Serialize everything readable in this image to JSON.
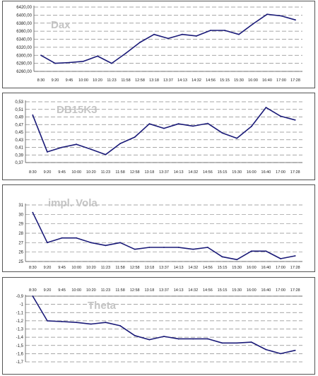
{
  "colors": {
    "line": "#1a1a78",
    "grid": "#8a8a8a",
    "title": "#c4c4c4"
  },
  "chart_data": [
    {
      "type": "line",
      "title": "Dax",
      "grid": true,
      "categories": [
        "8:30",
        "9:20",
        "9:45",
        "10:00",
        "10:20",
        "11:23",
        "11:58",
        "12:58",
        "13:18",
        "13:37",
        "14:13",
        "14:32",
        "14:56",
        "15:15",
        "15:30",
        "16:00",
        "16:40",
        "17:00",
        "17:28"
      ],
      "yticks": [
        "6260,00",
        "6280,00",
        "6300,00",
        "6320,00",
        "6340,00",
        "6360,00",
        "6380,00",
        "6400,00",
        "6420,00"
      ],
      "ylim": [
        6260,
        6420
      ],
      "values": [
        6300,
        6280,
        6282,
        6285,
        6298,
        6280,
        6305,
        6332,
        6352,
        6342,
        6352,
        6348,
        6362,
        6362,
        6352,
        6378,
        6402,
        6398,
        6388
      ]
    },
    {
      "type": "line",
      "title": "DB15K3",
      "grid": true,
      "categories": [
        "8:30",
        "9:20",
        "9:45",
        "10:00",
        "10:20",
        "11:23",
        "11:58",
        "12:58",
        "13:18",
        "13:37",
        "14:13",
        "14:32",
        "14:56",
        "15:15",
        "15:30",
        "16:00",
        "16:40",
        "17:00",
        "17:28"
      ],
      "yticks": [
        "0,37",
        "0,39",
        "0,41",
        "0,43",
        "0,45",
        "0,47",
        "0,49",
        "0,51",
        "0,53"
      ],
      "ylim": [
        0.37,
        0.53
      ],
      "values": [
        0.495,
        0.398,
        0.41,
        0.418,
        0.405,
        0.391,
        0.42,
        0.437,
        0.472,
        0.46,
        0.472,
        0.466,
        0.473,
        0.448,
        0.434,
        0.465,
        0.515,
        0.492,
        0.482
      ]
    },
    {
      "type": "line",
      "title": "impl. Vola",
      "grid": true,
      "categories": [
        "8:30",
        "9:20",
        "9:45",
        "10:00",
        "10:20",
        "11:23",
        "11:58",
        "12:58",
        "13:18",
        "13:37",
        "14:13",
        "14:32",
        "14:56",
        "15:15",
        "15:30",
        "16:00",
        "16:40",
        "17:00",
        "17:28"
      ],
      "yticks": [
        "25",
        "26",
        "27",
        "28",
        "29",
        "30",
        "31"
      ],
      "ylim": [
        25,
        31
      ],
      "values": [
        30.2,
        27.0,
        27.5,
        27.5,
        27.0,
        26.7,
        27.0,
        26.3,
        26.5,
        26.5,
        26.5,
        26.3,
        26.5,
        25.5,
        25.2,
        26.1,
        26.1,
        25.3,
        25.6
      ]
    },
    {
      "type": "line",
      "title": "Theta",
      "grid": true,
      "categories": [
        "8:30",
        "9:20",
        "9:45",
        "10:00",
        "10:20",
        "11:23",
        "11:58",
        "12:58",
        "13:18",
        "13:37",
        "14:13",
        "14:32",
        "14:56",
        "15:15",
        "15:30",
        "16:00",
        "16:40",
        "17:00",
        "17:28"
      ],
      "yticks": [
        "-0,9",
        "-1",
        "-1,1",
        "-1,2",
        "-1,3",
        "-1,4",
        "-1,5",
        "-1,6",
        "-1,7"
      ],
      "ylim": [
        -1.7,
        -0.9
      ],
      "values": [
        -0.9,
        -1.2,
        -1.21,
        -1.22,
        -1.24,
        -1.22,
        -1.26,
        -1.38,
        -1.43,
        -1.39,
        -1.42,
        -1.42,
        -1.42,
        -1.47,
        -1.47,
        -1.46,
        -1.55,
        -1.6,
        -1.56
      ]
    }
  ]
}
